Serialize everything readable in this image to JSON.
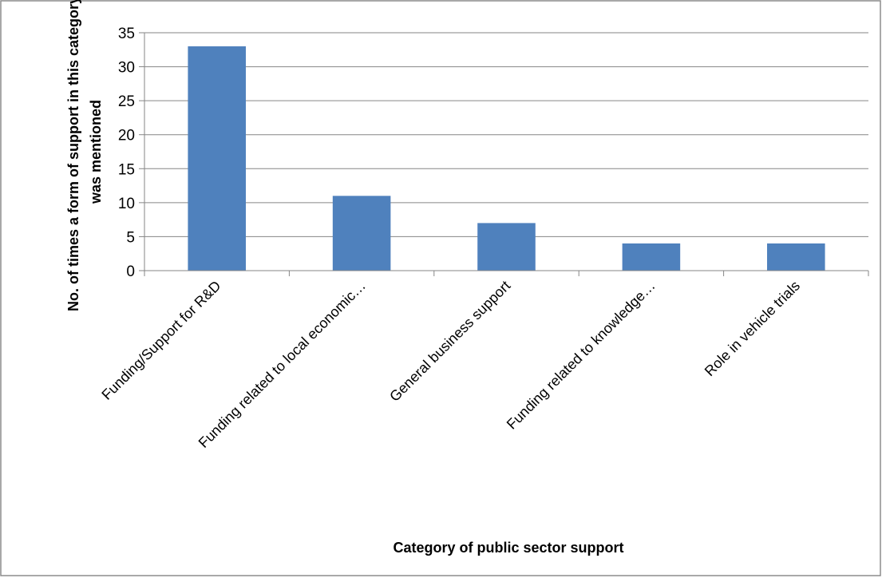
{
  "chart_data": {
    "type": "bar",
    "categories": [
      "Funding/Support for R&D",
      "Funding related to local economic…",
      "General business support",
      "Funding related to knowledge…",
      "Role in vehicle trials"
    ],
    "values": [
      33,
      11,
      7,
      4,
      4
    ],
    "xlabel": "Category of public sector support",
    "ylabel": "No. of times a form of support in this category was mentioned",
    "ylabel_lines": [
      "No. of times a form of support in this category",
      "was mentioned"
    ],
    "ylim": [
      0,
      35
    ],
    "yticks": [
      0,
      5,
      10,
      15,
      20,
      25,
      30,
      35
    ],
    "grid": true,
    "legend": "none",
    "bar_color": "#4f81bd"
  }
}
